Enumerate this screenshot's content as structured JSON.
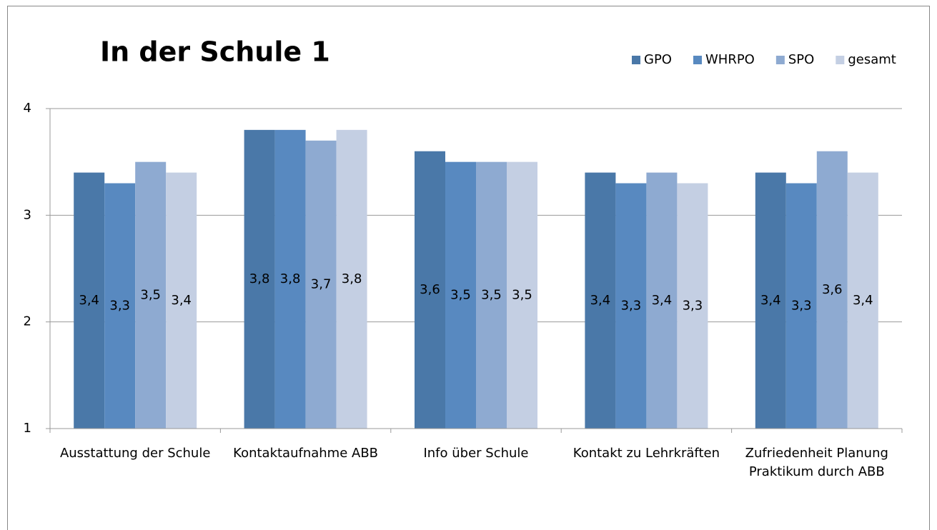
{
  "chart_data": {
    "type": "bar",
    "title": "In der Schule 1",
    "categories": [
      "Ausstattung der Schule",
      "Kontaktaufnahme ABB",
      "Info über Schule",
      "Kontakt zu Lehrkräften",
      "Zufriedenheit Planung Praktikum durch ABB"
    ],
    "series": [
      {
        "name": "GPO",
        "color": "#4a78a8",
        "values": [
          3.4,
          3.8,
          3.6,
          3.4,
          3.4
        ],
        "value_labels": [
          "3,4",
          "3,8",
          "3,6",
          "3,4",
          "3,4"
        ]
      },
      {
        "name": "WHRPO",
        "color": "#5889c0",
        "values": [
          3.3,
          3.8,
          3.5,
          3.3,
          3.3
        ],
        "value_labels": [
          "3,3",
          "3,8",
          "3,5",
          "3,3",
          "3,3"
        ]
      },
      {
        "name": "SPO",
        "color": "#8eaad1",
        "values": [
          3.5,
          3.7,
          3.5,
          3.4,
          3.6
        ],
        "value_labels": [
          "3,5",
          "3,7",
          "3,5",
          "3,4",
          "3,6"
        ]
      },
      {
        "name": "gesamt",
        "color": "#c4cfe3",
        "values": [
          3.4,
          3.8,
          3.5,
          3.3,
          3.4
        ],
        "value_labels": [
          "3,4",
          "3,8",
          "3,5",
          "3,3",
          "3,4"
        ]
      }
    ],
    "ylim": [
      1,
      4
    ],
    "yticks": [
      1,
      2,
      3,
      4
    ],
    "grid": true,
    "legend": "top-right"
  }
}
